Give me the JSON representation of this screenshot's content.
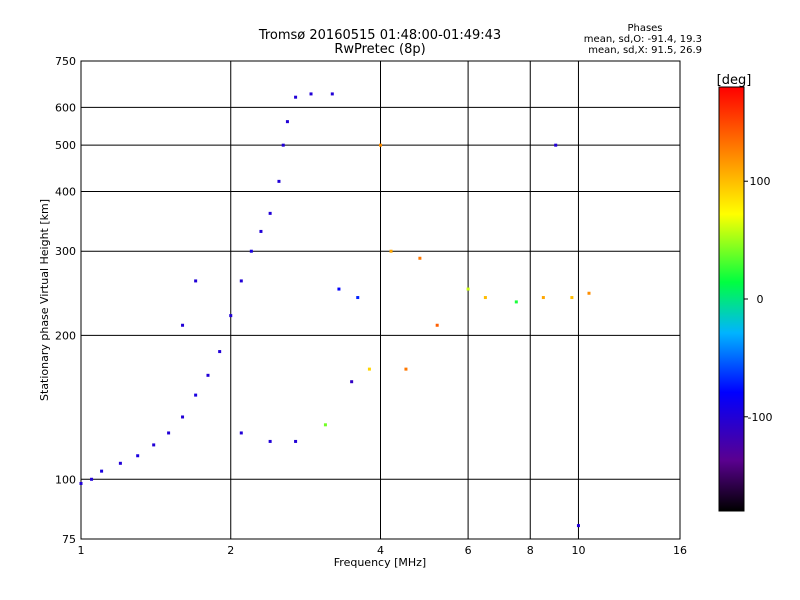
{
  "chart_data": {
    "type": "scatter",
    "title": "Tromsø 20160515 01:48:00-01:49:43",
    "subtitle": "RwPretec (8p)",
    "xlabel": "Frequency [MHz]",
    "ylabel": "Stationary phase Virtual Height [km]",
    "xscale": "log",
    "yscale": "log",
    "xlim": [
      1,
      16
    ],
    "ylim": [
      75,
      750
    ],
    "x_ticks": [
      1,
      2,
      4,
      6,
      8,
      10,
      16
    ],
    "x_tick_labels": [
      "1",
      "2",
      "4",
      "6",
      "8",
      "10",
      "16"
    ],
    "y_ticks": [
      75,
      100,
      200,
      300,
      400,
      500,
      600,
      750
    ],
    "y_tick_labels": [
      "75",
      "100",
      "200",
      "300",
      "400",
      "500",
      "600",
      "750"
    ],
    "grid": true,
    "stats": {
      "title": "Phases",
      "line_o": "mean, sd,O: -91.4, 19.3",
      "line_x": "mean, sd,X:  91.5, 26.9"
    },
    "colorbar": {
      "label": "[deg]",
      "range": [
        -180,
        180
      ],
      "ticks": [
        100,
        0,
        -100
      ],
      "tick_labels": [
        "100",
        "0",
        "-100"
      ]
    },
    "series": [
      {
        "values": [
          {
            "x": 1.0,
            "y": 98,
            "phase": -100
          },
          {
            "x": 1.05,
            "y": 100,
            "phase": -100
          },
          {
            "x": 1.1,
            "y": 104,
            "phase": -95
          },
          {
            "x": 1.2,
            "y": 108,
            "phase": -100
          },
          {
            "x": 1.3,
            "y": 112,
            "phase": -95
          },
          {
            "x": 1.4,
            "y": 118,
            "phase": -100
          },
          {
            "x": 1.5,
            "y": 125,
            "phase": -100
          },
          {
            "x": 1.6,
            "y": 135,
            "phase": -100
          },
          {
            "x": 1.7,
            "y": 150,
            "phase": -95
          },
          {
            "x": 1.8,
            "y": 165,
            "phase": -100
          },
          {
            "x": 1.9,
            "y": 185,
            "phase": -100
          },
          {
            "x": 2.0,
            "y": 220,
            "phase": -100
          },
          {
            "x": 2.1,
            "y": 260,
            "phase": -100
          },
          {
            "x": 2.2,
            "y": 300,
            "phase": -95
          },
          {
            "x": 2.3,
            "y": 330,
            "phase": -100
          },
          {
            "x": 2.4,
            "y": 360,
            "phase": -100
          },
          {
            "x": 2.5,
            "y": 420,
            "phase": -100
          },
          {
            "x": 2.55,
            "y": 500,
            "phase": -100
          },
          {
            "x": 2.6,
            "y": 560,
            "phase": -100
          },
          {
            "x": 2.7,
            "y": 630,
            "phase": -100
          },
          {
            "x": 2.9,
            "y": 640,
            "phase": -100
          },
          {
            "x": 3.2,
            "y": 640,
            "phase": -100
          },
          {
            "x": 1.6,
            "y": 210,
            "phase": -100
          },
          {
            "x": 1.7,
            "y": 260,
            "phase": -100
          },
          {
            "x": 2.1,
            "y": 125,
            "phase": -100
          },
          {
            "x": 2.4,
            "y": 120,
            "phase": -100
          },
          {
            "x": 2.7,
            "y": 120,
            "phase": -100
          },
          {
            "x": 3.1,
            "y": 130,
            "phase": 40
          },
          {
            "x": 3.3,
            "y": 250,
            "phase": -80
          },
          {
            "x": 3.6,
            "y": 240,
            "phase": -70
          },
          {
            "x": 4.0,
            "y": 500,
            "phase": 120
          },
          {
            "x": 4.2,
            "y": 300,
            "phase": 110
          },
          {
            "x": 4.8,
            "y": 290,
            "phase": 130
          },
          {
            "x": 5.2,
            "y": 210,
            "phase": 140
          },
          {
            "x": 6.0,
            "y": 250,
            "phase": 60
          },
          {
            "x": 6.5,
            "y": 240,
            "phase": 100
          },
          {
            "x": 7.5,
            "y": 235,
            "phase": 20
          },
          {
            "x": 8.5,
            "y": 240,
            "phase": 110
          },
          {
            "x": 9.0,
            "y": 500,
            "phase": -100
          },
          {
            "x": 9.7,
            "y": 240,
            "phase": 100
          },
          {
            "x": 10.0,
            "y": 80,
            "phase": -100
          },
          {
            "x": 10.5,
            "y": 245,
            "phase": 120
          },
          {
            "x": 3.8,
            "y": 170,
            "phase": 90
          },
          {
            "x": 4.5,
            "y": 170,
            "phase": 130
          },
          {
            "x": 3.5,
            "y": 160,
            "phase": -110
          }
        ]
      }
    ]
  }
}
